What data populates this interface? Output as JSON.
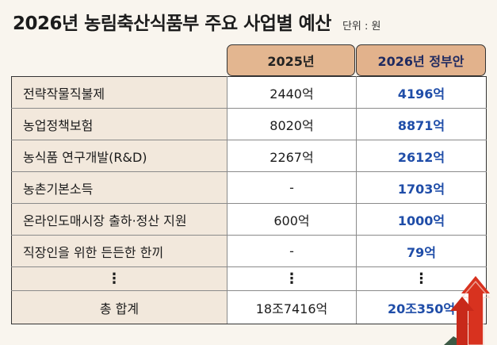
{
  "title": "2026년 농림축산식품부 주요 사업별 예산",
  "unit_label": "단위 : 원",
  "columns": {
    "y2025": "2025년",
    "y2026": "2026년 정부안"
  },
  "rows": [
    {
      "name": "전략작물직불제",
      "y2025": "2440억",
      "y2026": "4196억"
    },
    {
      "name": "농업정책보험",
      "y2025": "8020억",
      "y2026": "8871억"
    },
    {
      "name": "농식품 연구개발(R&D)",
      "y2025": "2267억",
      "y2026": "2612억"
    },
    {
      "name": "농촌기본소득",
      "y2025": "-",
      "y2026": "1703억"
    },
    {
      "name": "온라인도매시장 출하·정산 지원",
      "y2025": "600억",
      "y2026": "1000억"
    },
    {
      "name": "직장인을 위한 든든한 한끼",
      "y2025": "-",
      "y2026": "79억"
    }
  ],
  "ellipsis": "⋮",
  "total": {
    "name": "총 합계",
    "y2025": "18조7416억",
    "y2026": "20조350억"
  },
  "colors": {
    "header": "#e2b28c",
    "name_cell": "#f2e8dc",
    "highlight_blue": "#1f4da8",
    "arrow_red": "#d8321f"
  },
  "decoration_icon": "rising-arrows-icon"
}
